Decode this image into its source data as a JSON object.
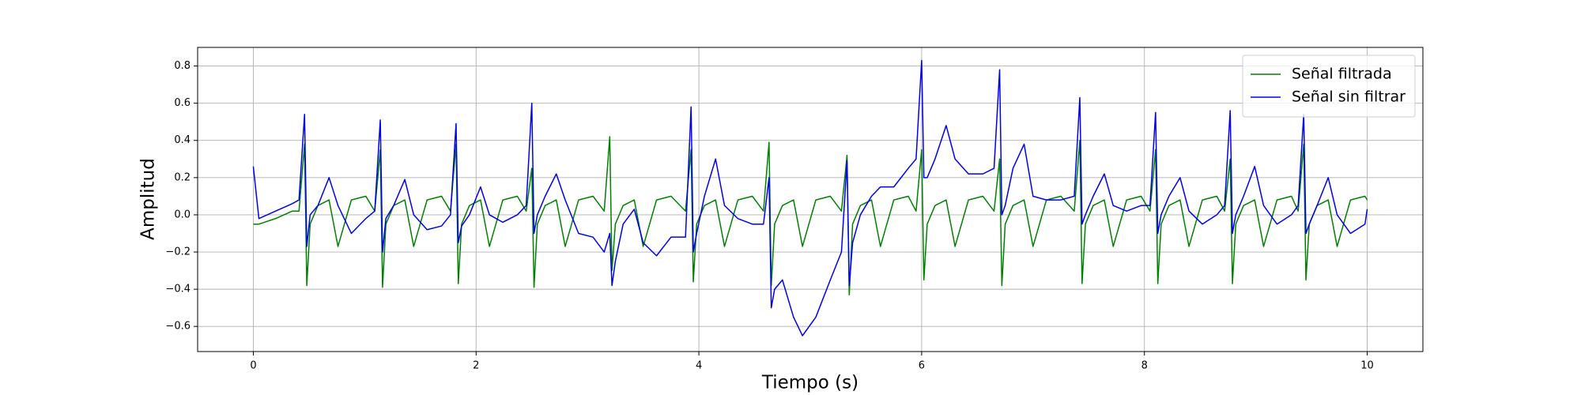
{
  "chart_data": {
    "type": "line",
    "xlabel": "Tiempo (s)",
    "ylabel": "Amplitud",
    "x": [
      0,
      0.05,
      0.2,
      0.35,
      0.41,
      0.46,
      0.48,
      0.51,
      0.58,
      0.68,
      0.76,
      0.88,
      1.01,
      1.09,
      1.14,
      1.16,
      1.19,
      1.26,
      1.36,
      1.44,
      1.56,
      1.69,
      1.77,
      1.82,
      1.84,
      1.87,
      1.94,
      2.04,
      2.12,
      2.24,
      2.37,
      2.45,
      2.5,
      2.52,
      2.55,
      2.62,
      2.72,
      2.8,
      2.92,
      3.05,
      3.15,
      3.2,
      3.22,
      3.25,
      3.32,
      3.42,
      3.5,
      3.62,
      3.75,
      3.88,
      3.93,
      3.95,
      3.98,
      4.05,
      4.15,
      4.23,
      4.35,
      4.48,
      4.58,
      4.63,
      4.65,
      4.68,
      4.75,
      4.85,
      4.93,
      5.05,
      5.18,
      5.28,
      5.33,
      5.35,
      5.38,
      5.45,
      5.55,
      5.63,
      5.75,
      5.88,
      5.95,
      6.0,
      6.02,
      6.05,
      6.12,
      6.22,
      6.3,
      6.42,
      6.55,
      6.65,
      6.7,
      6.72,
      6.75,
      6.82,
      6.92,
      7.0,
      7.12,
      7.25,
      7.37,
      7.42,
      7.44,
      7.47,
      7.54,
      7.64,
      7.72,
      7.84,
      7.97,
      8.05,
      8.1,
      8.12,
      8.15,
      8.22,
      8.32,
      8.4,
      8.52,
      8.65,
      8.72,
      8.77,
      8.79,
      8.82,
      8.89,
      8.99,
      9.07,
      9.19,
      9.32,
      9.38,
      9.43,
      9.45,
      9.48,
      9.55,
      9.65,
      9.73,
      9.85,
      9.98,
      10.0
    ],
    "series": [
      {
        "name": "Señal filtrada",
        "color": "#008000",
        "values": [
          -0.05,
          -0.05,
          -0.02,
          0.02,
          0.02,
          0.38,
          -0.38,
          -0.05,
          0.05,
          0.08,
          -0.17,
          0.08,
          0.1,
          0.02,
          0.35,
          -0.39,
          -0.05,
          0.05,
          0.08,
          -0.17,
          0.08,
          0.1,
          0.02,
          0.38,
          -0.37,
          -0.05,
          0.05,
          0.08,
          -0.17,
          0.08,
          0.1,
          0.02,
          0.25,
          -0.39,
          -0.05,
          0.05,
          0.08,
          -0.17,
          0.08,
          0.1,
          0.02,
          0.42,
          -0.3,
          -0.05,
          0.05,
          0.08,
          -0.17,
          0.08,
          0.1,
          0.02,
          0.35,
          -0.36,
          -0.05,
          0.05,
          0.08,
          -0.17,
          0.08,
          0.1,
          0.02,
          0.39,
          -0.38,
          -0.05,
          0.05,
          0.08,
          -0.17,
          0.08,
          0.1,
          0.02,
          0.32,
          -0.43,
          -0.05,
          0.05,
          0.08,
          -0.17,
          0.08,
          0.1,
          0.02,
          0.35,
          -0.35,
          -0.05,
          0.05,
          0.08,
          -0.17,
          0.08,
          0.1,
          0.02,
          0.3,
          -0.38,
          -0.05,
          0.05,
          0.08,
          -0.17,
          0.08,
          0.1,
          0.02,
          0.4,
          -0.37,
          -0.05,
          0.05,
          0.08,
          -0.17,
          0.08,
          0.1,
          0.02,
          0.35,
          -0.37,
          -0.05,
          0.05,
          0.08,
          -0.17,
          0.08,
          0.1,
          0.02,
          0.3,
          -0.37,
          -0.05,
          0.05,
          0.08,
          -0.17,
          0.08,
          0.1,
          0.02,
          0.38,
          -0.35,
          -0.05,
          0.05,
          0.08,
          -0.17,
          0.08,
          0.1,
          0.08
        ]
      },
      {
        "name": "Señal sin filtrar",
        "color": "#0000ee",
        "values": [
          0.26,
          -0.02,
          0.02,
          0.06,
          0.08,
          0.54,
          -0.17,
          0.0,
          0.05,
          0.2,
          0.05,
          -0.1,
          -0.02,
          0.02,
          0.51,
          -0.2,
          -0.02,
          0.05,
          0.19,
          0.0,
          -0.08,
          -0.06,
          0.0,
          0.49,
          -0.15,
          -0.06,
          0.0,
          0.15,
          0.0,
          -0.04,
          0.0,
          0.05,
          0.6,
          -0.1,
          0.0,
          0.1,
          0.22,
          0.08,
          -0.1,
          -0.12,
          -0.2,
          -0.1,
          -0.38,
          -0.25,
          -0.05,
          0.03,
          -0.15,
          -0.22,
          -0.12,
          -0.12,
          0.58,
          -0.2,
          -0.1,
          0.1,
          0.3,
          0.05,
          -0.02,
          -0.05,
          -0.05,
          0.2,
          -0.5,
          -0.4,
          -0.35,
          -0.55,
          -0.65,
          -0.55,
          -0.35,
          -0.2,
          0.29,
          -0.38,
          -0.15,
          0.0,
          0.1,
          0.15,
          0.15,
          0.25,
          0.3,
          0.83,
          0.2,
          0.2,
          0.3,
          0.48,
          0.3,
          0.22,
          0.22,
          0.25,
          0.78,
          0.0,
          0.05,
          0.25,
          0.38,
          0.1,
          0.08,
          0.08,
          0.1,
          0.63,
          -0.05,
          0.0,
          0.1,
          0.22,
          0.05,
          0.02,
          0.05,
          0.05,
          0.55,
          -0.1,
          0.0,
          0.1,
          0.2,
          0.02,
          -0.05,
          0.0,
          0.05,
          0.56,
          -0.1,
          0.0,
          0.1,
          0.26,
          0.05,
          -0.05,
          0.0,
          0.05,
          0.54,
          -0.1,
          -0.05,
          0.05,
          0.2,
          0.0,
          -0.1,
          -0.05,
          0.03
        ]
      }
    ],
    "xlim": [
      -0.5,
      10.5
    ],
    "xticks": [
      0,
      2,
      4,
      6,
      8,
      10
    ],
    "ylim": [
      -0.735,
      0.9
    ],
    "yticks": [
      {
        "value": -0.6,
        "label": "−0.6"
      },
      {
        "value": -0.4,
        "label": "−0.4"
      },
      {
        "value": -0.2,
        "label": "−0.2"
      },
      {
        "value": 0,
        "label": "0.0"
      },
      0.2,
      0.4,
      0.6,
      0.8
    ],
    "grid": true,
    "legend": "upper right"
  }
}
